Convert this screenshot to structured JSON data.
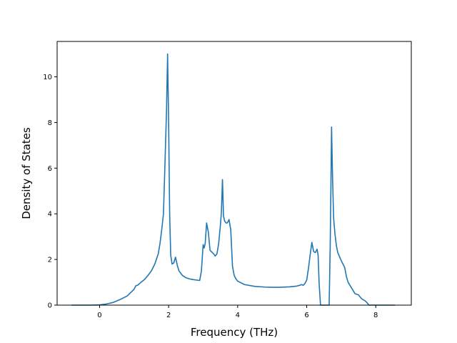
{
  "chart_data": {
    "type": "line",
    "title": "",
    "xlabel": "Frequency (THz)",
    "ylabel": "Density of States",
    "xlim": [
      -1.23,
      9.03
    ],
    "ylim": [
      0,
      11.55
    ],
    "x_ticks": [
      0,
      2,
      4,
      6,
      8
    ],
    "y_ticks": [
      0,
      2,
      4,
      6,
      8,
      10
    ],
    "x_tick_labels": [
      "0",
      "2",
      "4",
      "6",
      "8"
    ],
    "y_tick_labels": [
      "0",
      "2",
      "4",
      "6",
      "8",
      "10"
    ],
    "grid": false,
    "legend": "none",
    "line_color": "#1f77b4",
    "series": [
      {
        "x": [
          -0.8,
          -0.5,
          -0.2,
          0.0,
          0.2,
          0.4,
          0.6,
          0.8,
          0.9,
          1.0,
          1.05,
          1.1,
          1.2,
          1.3,
          1.4,
          1.5,
          1.6,
          1.7,
          1.75,
          1.8,
          1.85,
          1.88,
          1.91,
          1.94,
          1.97,
          2.0,
          2.03,
          2.06,
          2.1,
          2.15,
          2.2,
          2.25,
          2.3,
          2.4,
          2.5,
          2.6,
          2.7,
          2.8,
          2.9,
          2.95,
          3.0,
          3.03,
          3.06,
          3.1,
          3.15,
          3.2,
          3.3,
          3.35,
          3.4,
          3.45,
          3.5,
          3.53,
          3.56,
          3.59,
          3.62,
          3.66,
          3.7,
          3.75,
          3.8,
          3.85,
          3.9,
          3.95,
          4.0,
          4.2,
          4.5,
          4.8,
          5.0,
          5.2,
          5.5,
          5.7,
          5.8,
          5.85,
          5.9,
          5.95,
          6.0,
          6.05,
          6.1,
          6.15,
          6.2,
          6.25,
          6.3,
          6.33,
          6.36,
          6.4,
          6.45,
          6.5,
          6.55,
          6.6,
          6.65,
          6.68,
          6.7,
          6.72,
          6.75,
          6.78,
          6.82,
          6.86,
          6.9,
          7.0,
          7.1,
          7.15,
          7.2,
          7.3,
          7.4,
          7.5,
          7.55,
          7.6,
          7.7,
          7.78,
          7.8,
          8.0,
          8.2,
          8.4,
          8.55
        ],
        "y": [
          0,
          0,
          0,
          0.01,
          0.05,
          0.12,
          0.25,
          0.4,
          0.55,
          0.7,
          0.85,
          0.87,
          1.0,
          1.12,
          1.3,
          1.5,
          1.8,
          2.25,
          2.7,
          3.3,
          4.0,
          5.5,
          7.0,
          8.6,
          11.0,
          8.0,
          4.0,
          2.2,
          1.8,
          1.85,
          2.1,
          1.75,
          1.5,
          1.3,
          1.2,
          1.15,
          1.12,
          1.1,
          1.08,
          1.5,
          2.65,
          2.5,
          2.7,
          3.6,
          3.2,
          2.4,
          2.25,
          2.15,
          2.25,
          2.7,
          3.5,
          4.1,
          5.5,
          3.9,
          3.7,
          3.6,
          3.6,
          3.75,
          3.3,
          1.7,
          1.3,
          1.15,
          1.05,
          0.9,
          0.82,
          0.79,
          0.78,
          0.78,
          0.8,
          0.83,
          0.87,
          0.9,
          0.87,
          0.95,
          1.1,
          1.6,
          2.2,
          2.75,
          2.35,
          2.3,
          2.45,
          2.2,
          0.95,
          0.0,
          0.0,
          0.0,
          0.0,
          0.0,
          0.0,
          2.5,
          5.0,
          7.8,
          5.5,
          3.8,
          3.1,
          2.6,
          2.3,
          1.95,
          1.65,
          1.25,
          1.0,
          0.75,
          0.5,
          0.45,
          0.35,
          0.27,
          0.18,
          0.05,
          0.0,
          0.0,
          0.0,
          0.0,
          0.0
        ]
      }
    ]
  }
}
